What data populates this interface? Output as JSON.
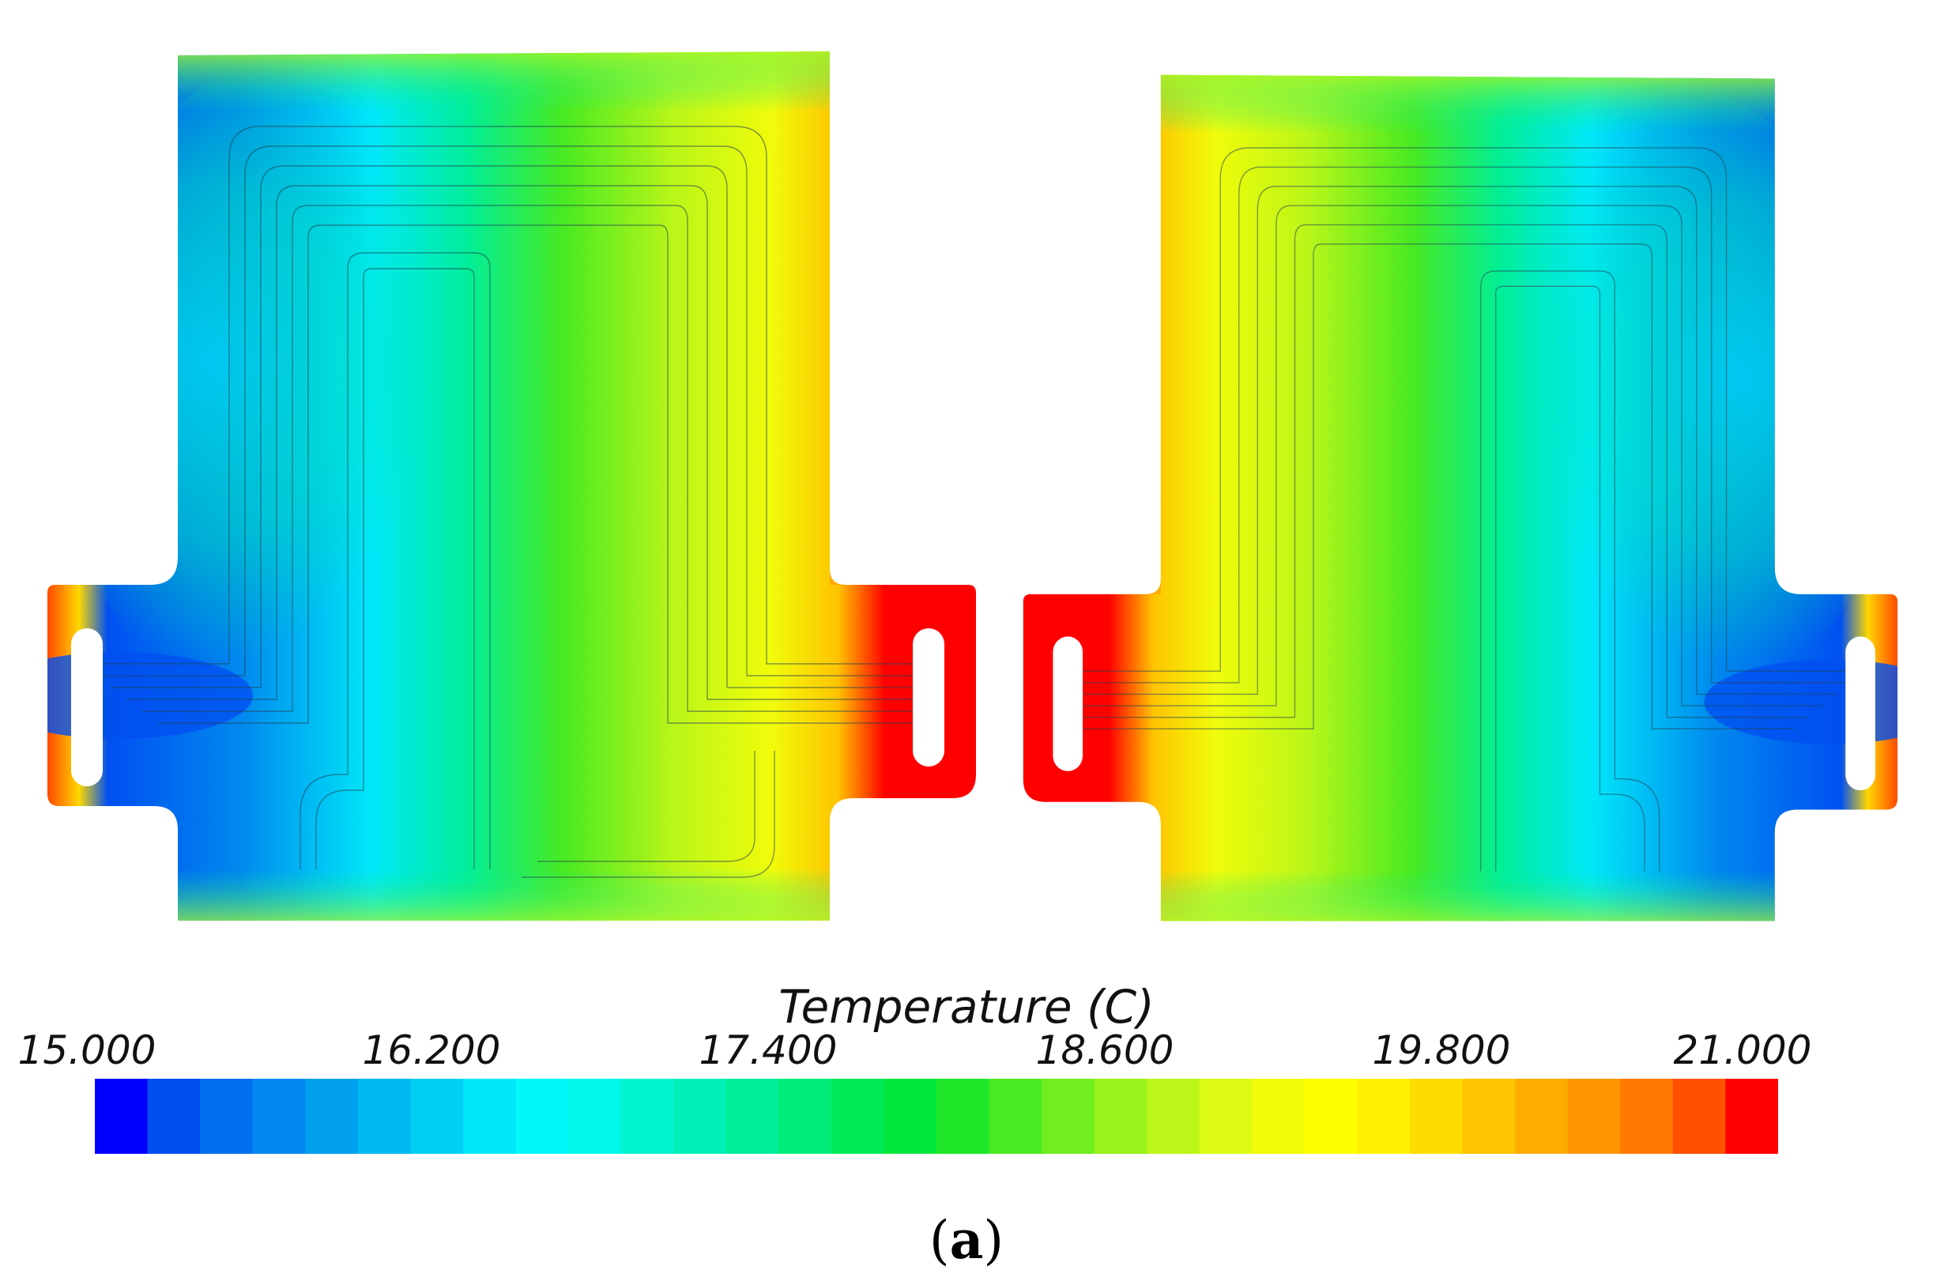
{
  "chart_data": {
    "type": "heatmap",
    "title": "",
    "colorbar": {
      "title": "Temperature (C)",
      "min": 15.0,
      "max": 21.0,
      "ticks": [
        "15.000",
        "16.200",
        "17.400",
        "18.600",
        "19.800",
        "21.000"
      ],
      "tick_values": [
        15.0,
        16.2,
        17.4,
        18.6,
        19.8,
        21.0
      ],
      "bands": 32,
      "colors": [
        "#0000ff",
        "#0050f0",
        "#0070ee",
        "#0088ee",
        "#00a0ee",
        "#00b8f0",
        "#00d0f4",
        "#00e8f8",
        "#00f8f8",
        "#00f8e8",
        "#00f4d0",
        "#00f0b8",
        "#00ee98",
        "#00ec78",
        "#00ea58",
        "#00e83a",
        "#20e828",
        "#48ea22",
        "#70ee20",
        "#98f21c",
        "#bcf618",
        "#dcfa12",
        "#f0fc0a",
        "#ffff00",
        "#fff000",
        "#ffdc00",
        "#ffc400",
        "#ffac00",
        "#ff9400",
        "#ff7800",
        "#ff5000",
        "#ff0000"
      ]
    },
    "panels": [
      {
        "name": "left",
        "cold_side": "left",
        "temperature_range": [
          15.0,
          21.0
        ]
      },
      {
        "name": "right",
        "cold_side": "right",
        "temperature_range": [
          15.0,
          21.0
        ]
      }
    ]
  },
  "panel_label": {
    "open": "(",
    "letter": "a",
    "close": ")"
  }
}
